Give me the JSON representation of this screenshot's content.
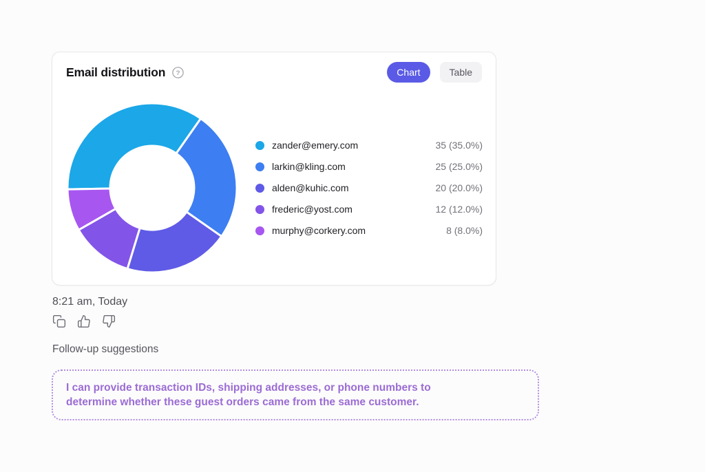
{
  "card": {
    "title": "Email distribution",
    "help_icon": "question-circle-icon",
    "tabs": [
      {
        "label": "Chart",
        "active": true
      },
      {
        "label": "Table",
        "active": false
      }
    ]
  },
  "chart_data": {
    "type": "pie",
    "donut": true,
    "title": "Email distribution",
    "labels": [
      "zander@emery.com",
      "larkin@kling.com",
      "alden@kuhic.com",
      "frederic@yost.com",
      "murphy@corkery.com"
    ],
    "values": [
      35,
      25,
      20,
      12,
      8
    ],
    "percentages": [
      "35.0%",
      "25.0%",
      "20.0%",
      "12.0%",
      "8.0%"
    ],
    "value_labels": [
      "35 (35.0%)",
      "25 (25.0%)",
      "20 (20.0%)",
      "12 (12.0%)",
      "8 (8.0%)"
    ],
    "total": 100,
    "colors": [
      "#1BA7E8",
      "#3D7EF2",
      "#5F5BE6",
      "#8354E8",
      "#A757F0"
    ],
    "start_angle_deg": 269,
    "inner_radius_ratio": 0.49,
    "legend_position": "right"
  },
  "message": {
    "timestamp": "8:21 am, Today",
    "action_icons": [
      "copy-icon",
      "thumbs-up-icon",
      "thumbs-down-icon"
    ]
  },
  "followup": {
    "label": "Follow-up suggestions",
    "suggestions": [
      "I can provide transaction IDs, shipping addresses, or phone numbers to determine whether these guest orders came from the same customer."
    ]
  },
  "colors": {
    "accent": "#5A5AE6",
    "page_background": "#FCFCFC",
    "card_border": "#E7E7EB",
    "suggestion_border": "#B18CDF",
    "suggestion_text": "#9B6CD4",
    "muted_text": "#71717A"
  }
}
